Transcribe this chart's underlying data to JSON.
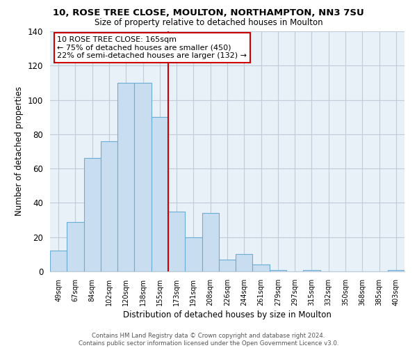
{
  "title": "10, ROSE TREE CLOSE, MOULTON, NORTHAMPTON, NN3 7SU",
  "subtitle": "Size of property relative to detached houses in Moulton",
  "xlabel": "Distribution of detached houses by size in Moulton",
  "ylabel": "Number of detached properties",
  "bar_labels": [
    "49sqm",
    "67sqm",
    "84sqm",
    "102sqm",
    "120sqm",
    "138sqm",
    "155sqm",
    "173sqm",
    "191sqm",
    "208sqm",
    "226sqm",
    "244sqm",
    "261sqm",
    "279sqm",
    "297sqm",
    "315sqm",
    "332sqm",
    "350sqm",
    "368sqm",
    "385sqm",
    "403sqm"
  ],
  "bar_values": [
    12,
    29,
    66,
    76,
    110,
    110,
    90,
    35,
    20,
    34,
    7,
    10,
    4,
    1,
    0,
    1,
    0,
    0,
    0,
    0,
    1
  ],
  "bar_color": "#c8ddf0",
  "bar_edge_color": "#6aaed6",
  "vline_color": "#cc0000",
  "vline_index": 7,
  "ylim": [
    0,
    140
  ],
  "yticks": [
    0,
    20,
    40,
    60,
    80,
    100,
    120,
    140
  ],
  "annotation_title": "10 ROSE TREE CLOSE: 165sqm",
  "annotation_line1": "← 75% of detached houses are smaller (450)",
  "annotation_line2": "22% of semi-detached houses are larger (132) →",
  "annotation_box_color": "#ffffff",
  "annotation_box_edge": "#cc0000",
  "footer_line1": "Contains HM Land Registry data © Crown copyright and database right 2024.",
  "footer_line2": "Contains public sector information licensed under the Open Government Licence v3.0.",
  "background_color": "#ffffff",
  "plot_bg_color": "#e8f0f8",
  "grid_color": "#c0ccd8"
}
